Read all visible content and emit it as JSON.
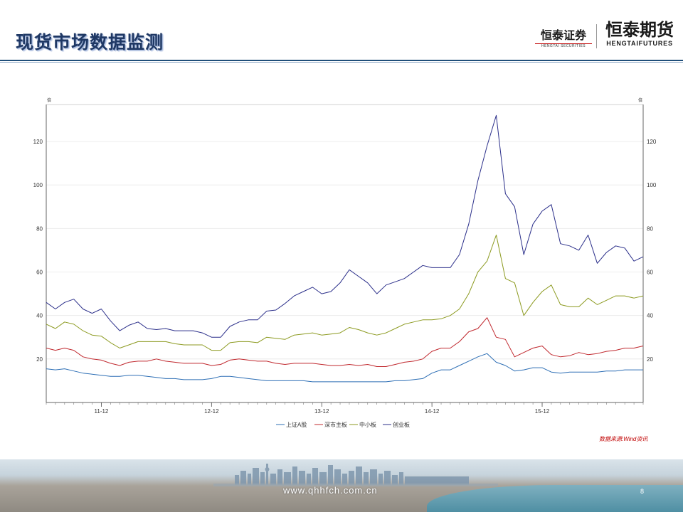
{
  "header": {
    "title": "现货市场数据监测",
    "logo_securities_cn": "恒泰证券",
    "logo_securities_en": "HENGTAI SECURITIES",
    "logo_futures_cn": "恒泰期货",
    "logo_futures_en": "HENGTAIFUTURES"
  },
  "footer": {
    "url": "www.qhhfch.com.cn",
    "page_number": "8",
    "source_note": "数据来源:Wind资讯"
  },
  "colors": {
    "title": "#1f3864",
    "sse_a": "#2e6fb5",
    "szse_main": "#c0282e",
    "sme": "#8c9a20",
    "chinext": "#2b2f8a"
  },
  "chart_data": {
    "type": "line",
    "title": "",
    "xlabel": "",
    "ylabel_left": "倍",
    "ylabel_right": "倍",
    "ylim": [
      0,
      137
    ],
    "yticks": [
      20,
      40,
      60,
      80,
      100,
      120
    ],
    "x_ticks": [
      {
        "label": "11-12",
        "index": 6
      },
      {
        "label": "12-12",
        "index": 18
      },
      {
        "label": "13-12",
        "index": 30
      },
      {
        "label": "14-12",
        "index": 42
      },
      {
        "label": "15-12",
        "index": 54
      }
    ],
    "n_points": 66,
    "grid": "horizontal",
    "legend_position": "bottom",
    "series": [
      {
        "name": "上证A股",
        "values": [
          15.5,
          15,
          15.5,
          14.5,
          13.5,
          13,
          12.5,
          12,
          12,
          12.5,
          12.5,
          12,
          11.5,
          11,
          11,
          10.5,
          10.5,
          10.5,
          11,
          12,
          12,
          11.5,
          11,
          10.5,
          10,
          10,
          10,
          10,
          10,
          9.5,
          9.5,
          9.5,
          9.5,
          9.5,
          9.5,
          9.5,
          9.5,
          9.5,
          10,
          10,
          10.5,
          11,
          13.5,
          15,
          15,
          17,
          19,
          21,
          22.5,
          18.5,
          17,
          14.5,
          15,
          16,
          16,
          14,
          13.5,
          14,
          14,
          14,
          14,
          14.5,
          14.5,
          15,
          15,
          15
        ]
      },
      {
        "name": "深市主板",
        "values": [
          25,
          24,
          25,
          24,
          21,
          20,
          19.5,
          18,
          17,
          18.5,
          19,
          19,
          20,
          19,
          18.5,
          18,
          18,
          18,
          17,
          17.5,
          19.5,
          20,
          19.5,
          19,
          19,
          18,
          17.5,
          18,
          18,
          18,
          17.5,
          17,
          17,
          17.5,
          17,
          17.5,
          16.5,
          16.5,
          17.5,
          18.5,
          19,
          20,
          23.5,
          25,
          25,
          28,
          32.5,
          34,
          39,
          30,
          29,
          21,
          23,
          25,
          26,
          22,
          21,
          21.5,
          23,
          22,
          22.5,
          23.5,
          24,
          25,
          25,
          26
        ]
      },
      {
        "name": "中小板",
        "values": [
          36,
          34,
          37,
          36,
          33,
          31,
          30.5,
          27.5,
          25,
          26.5,
          28,
          28,
          28,
          28,
          27,
          26.5,
          26.5,
          26.5,
          24,
          24,
          27.5,
          28,
          28,
          27.5,
          30,
          29.5,
          29,
          31,
          31.5,
          32,
          31,
          31.5,
          32,
          34.5,
          33.5,
          32,
          31,
          32,
          34,
          36,
          37,
          38,
          38,
          38.5,
          40,
          43,
          50,
          60,
          65,
          77,
          57,
          55,
          40,
          46,
          51,
          54,
          45,
          44,
          44,
          48,
          45,
          47,
          49,
          49,
          48,
          49
        ]
      },
      {
        "name": "创业板",
        "values": [
          46,
          43,
          46,
          47.5,
          43,
          41,
          43,
          37.5,
          33,
          35.5,
          37,
          34,
          33.5,
          34,
          33,
          33,
          33,
          32,
          30,
          30,
          35,
          37,
          38,
          38,
          42,
          42.5,
          45.5,
          49,
          51,
          53,
          50,
          51,
          55,
          61,
          58,
          55,
          50,
          54,
          55.5,
          57,
          60,
          63,
          62,
          62,
          62,
          68,
          82,
          102,
          118,
          132,
          96,
          90,
          68,
          82,
          88,
          91,
          73,
          72,
          70,
          77,
          64,
          69,
          72,
          71,
          65,
          67
        ]
      }
    ]
  }
}
